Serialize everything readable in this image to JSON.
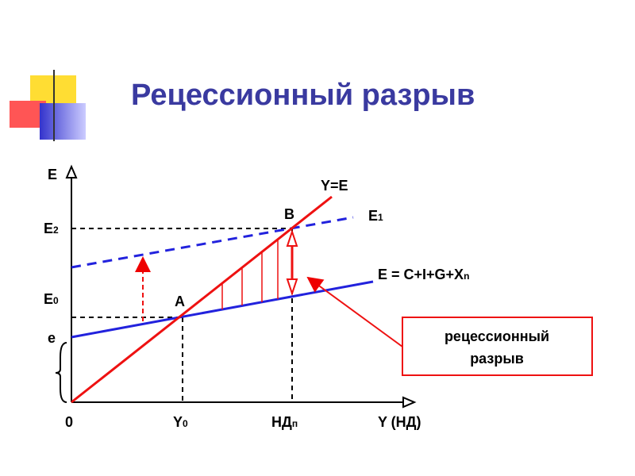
{
  "header": {
    "title": "Рецессионный разрыв"
  },
  "diagram": {
    "axis_y": "E",
    "axis_x": "Y (НД)",
    "origin": "0",
    "labels": {
      "e2": {
        "main": "E",
        "sub": "2"
      },
      "e0": {
        "main": "E",
        "sub": "0"
      },
      "e": "e",
      "y0": {
        "main": "Y",
        "sub": "0"
      },
      "ndp": {
        "main": "НД",
        "sub": "п"
      },
      "a": "A",
      "b": "B",
      "y_eq_e": "Y=E",
      "e1": {
        "main": "E",
        "sub": "1"
      },
      "e_formula": {
        "main": "E = C+I+G+X",
        "sub": "n"
      }
    },
    "callout": [
      "рецессионный",
      "разрыв"
    ]
  }
}
